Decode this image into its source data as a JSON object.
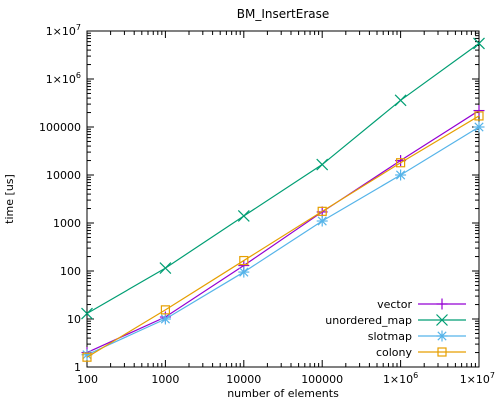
{
  "chart_data": {
    "type": "line",
    "title": "BM_InsertErase",
    "xlabel": "number of elements",
    "ylabel": "time [us]",
    "x_scale": "log",
    "y_scale": "log",
    "xlim": [
      100,
      10000000
    ],
    "ylim": [
      1,
      10000000
    ],
    "grid": false,
    "legend_position": "bottom-right",
    "x_ticks": [
      {
        "value": 100,
        "label": "100"
      },
      {
        "value": 1000,
        "label": "1000"
      },
      {
        "value": 10000,
        "label": "10000"
      },
      {
        "value": 100000,
        "label": "100000"
      },
      {
        "value": 1000000,
        "label": "1×10",
        "exp": "6"
      },
      {
        "value": 10000000,
        "label": "1×10",
        "exp": "7"
      }
    ],
    "y_ticks": [
      {
        "value": 1,
        "label": "1"
      },
      {
        "value": 10,
        "label": "10"
      },
      {
        "value": 100,
        "label": "100"
      },
      {
        "value": 1000,
        "label": "1000"
      },
      {
        "value": 10000,
        "label": "10000"
      },
      {
        "value": 100000,
        "label": "100000"
      },
      {
        "value": 1000000,
        "label": "1×10",
        "exp": "6"
      },
      {
        "value": 10000000,
        "label": "1×10",
        "exp": "7"
      }
    ],
    "x": [
      100,
      1000,
      10000,
      100000,
      1000000,
      10000000
    ],
    "series": [
      {
        "name": "vector",
        "marker": "plus",
        "color": "#9400d3",
        "values": [
          2,
          11,
          130,
          1700,
          20000,
          220000
        ]
      },
      {
        "name": "unordered_map",
        "marker": "cross",
        "color": "#009e73",
        "values": [
          13,
          115,
          1400,
          16500,
          360000,
          5500000
        ]
      },
      {
        "name": "slotmap",
        "marker": "star",
        "color": "#56b4e9",
        "values": [
          1.8,
          10,
          95,
          1100,
          10000,
          100000
        ]
      },
      {
        "name": "colony",
        "marker": "square",
        "color": "#e69f00",
        "values": [
          1.6,
          15.5,
          165,
          1750,
          18000,
          170000
        ]
      }
    ]
  }
}
